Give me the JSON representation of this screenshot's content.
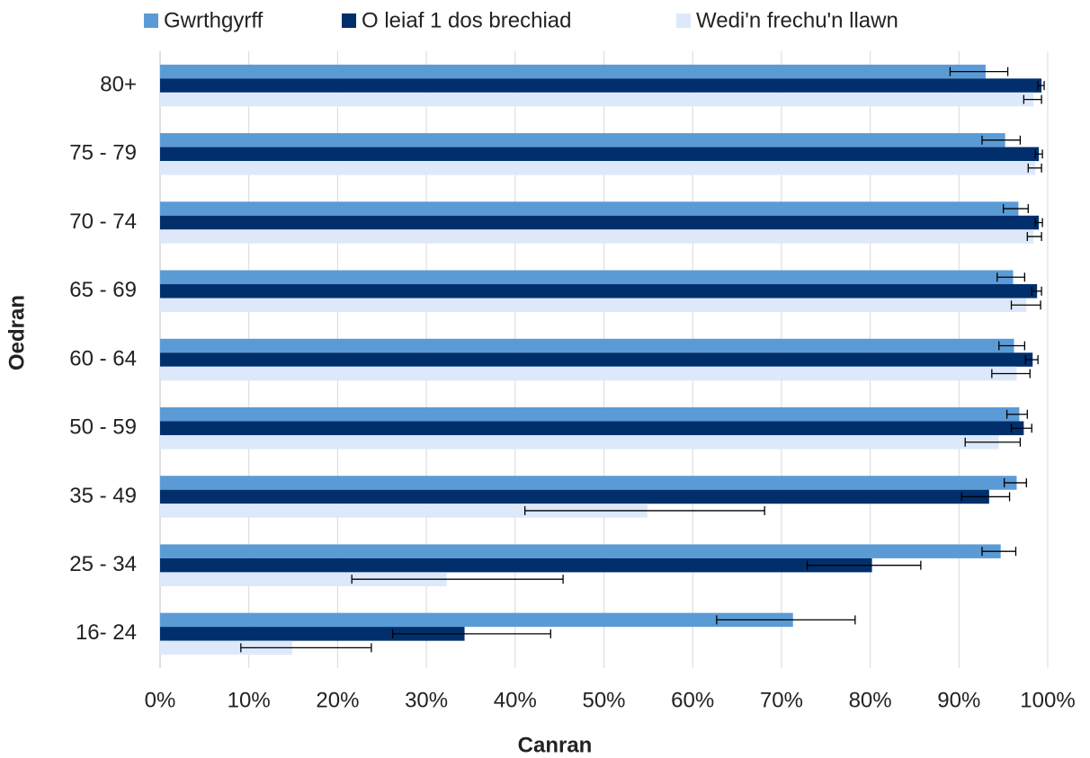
{
  "chart_data": {
    "type": "barh",
    "x_label": "Canran",
    "y_label": "Oedran",
    "categories": [
      "80+",
      "75 - 79",
      "70 - 74",
      "65 - 69",
      "60 - 64",
      "50 - 59",
      "35 - 49",
      "25 - 34",
      "16- 24"
    ],
    "series": [
      {
        "name": "Gwrthgyrff",
        "color": "#5b9bd5",
        "values": [
          93.0,
          95.2,
          96.7,
          96.1,
          96.2,
          96.8,
          96.5,
          94.7,
          71.3
        ],
        "ci_low": [
          89.0,
          92.6,
          95.0,
          94.3,
          94.5,
          95.4,
          95.1,
          92.6,
          62.7
        ],
        "ci_high": [
          95.5,
          96.9,
          97.8,
          97.4,
          97.4,
          97.7,
          97.6,
          96.4,
          78.3
        ]
      },
      {
        "name": "O leiaf 1 dos brechiad",
        "color": "#002f6c",
        "values": [
          99.3,
          99.0,
          99.0,
          98.8,
          98.3,
          97.3,
          93.4,
          80.2,
          34.3
        ],
        "ci_low": [
          98.9,
          98.6,
          98.6,
          98.2,
          97.5,
          95.9,
          90.3,
          72.9,
          26.2
        ],
        "ci_high": [
          99.6,
          99.4,
          99.4,
          99.3,
          98.9,
          98.2,
          95.7,
          85.7,
          44.0
        ]
      },
      {
        "name": "Wedi'n frechu'n llawn",
        "color": "#dde9fb",
        "values": [
          98.4,
          98.6,
          98.4,
          97.6,
          96.5,
          94.5,
          54.9,
          32.3,
          14.9
        ],
        "ci_low": [
          97.3,
          97.8,
          97.7,
          95.9,
          93.7,
          90.7,
          41.1,
          21.6,
          9.1
        ],
        "ci_high": [
          99.3,
          99.3,
          99.3,
          99.2,
          98.0,
          96.9,
          68.1,
          45.4,
          23.8
        ]
      }
    ],
    "xlim": [
      0,
      100
    ],
    "xticks": [
      {
        "value": 0,
        "label": "0%"
      },
      {
        "value": 10,
        "label": "10%"
      },
      {
        "value": 20,
        "label": "20%"
      },
      {
        "value": 30,
        "label": "30%"
      },
      {
        "value": 40,
        "label": "40%"
      },
      {
        "value": 50,
        "label": "50%"
      },
      {
        "value": 60,
        "label": "60%"
      },
      {
        "value": 70,
        "label": "70%"
      },
      {
        "value": 80,
        "label": "80%"
      },
      {
        "value": 90,
        "label": "90%"
      },
      {
        "value": 100,
        "label": "100%"
      }
    ],
    "grid": true,
    "legend": "top"
  }
}
